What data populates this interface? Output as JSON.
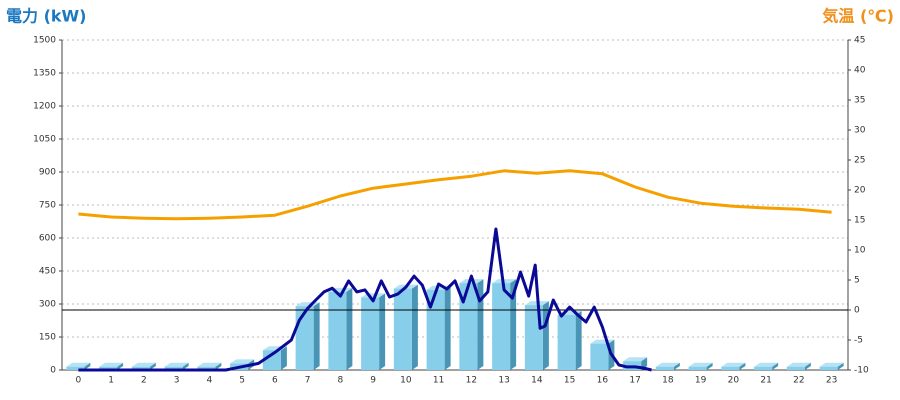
{
  "chart_data": {
    "type": "bar",
    "y_label": "電力 (kW)",
    "y2_label": "気温 (℃)",
    "categories": [
      "0",
      "1",
      "2",
      "3",
      "4",
      "5",
      "6",
      "7",
      "8",
      "9",
      "10",
      "11",
      "12",
      "13",
      "14",
      "15",
      "16",
      "17",
      "18",
      "19",
      "20",
      "21",
      "22",
      "23"
    ],
    "ylim": [
      0,
      1500
    ],
    "yticks": [
      0,
      150,
      300,
      450,
      600,
      750,
      900,
      1050,
      1200,
      1350,
      1500
    ],
    "y2lim": [
      -10,
      45
    ],
    "y2ticks": [
      -10,
      -5,
      0,
      5,
      10,
      15,
      20,
      25,
      30,
      35,
      40,
      45
    ],
    "grid": true,
    "y2_zero_line": true,
    "series": [
      {
        "type": "bar",
        "color": "#87ceeb",
        "values": [
          15,
          15,
          15,
          15,
          15,
          30,
          90,
          290,
          355,
          330,
          370,
          365,
          395,
          395,
          295,
          250,
          120,
          40,
          15,
          15,
          15,
          15,
          15,
          15
        ]
      },
      {
        "type": "line",
        "color": "#0a0a96",
        "x": [
          0,
          4.5,
          5,
          5.5,
          6,
          6.5,
          6.75,
          7,
          7.25,
          7.5,
          7.75,
          8,
          8.25,
          8.5,
          8.75,
          9,
          9.25,
          9.5,
          9.75,
          10,
          10.25,
          10.5,
          10.75,
          11,
          11.25,
          11.5,
          11.75,
          12,
          12.25,
          12.5,
          12.75,
          13,
          13.25,
          13.5,
          13.75,
          13.95,
          14.1,
          14.25,
          14.5,
          14.75,
          15,
          15.25,
          15.5,
          15.75,
          16,
          16.25,
          16.5,
          16.75,
          17,
          17.25,
          17.5
        ],
        "values": [
          0,
          0,
          15,
          30,
          80,
          136,
          227,
          280,
          318,
          355,
          372,
          336,
          405,
          355,
          364,
          314,
          405,
          332,
          345,
          377,
          427,
          386,
          286,
          391,
          368,
          405,
          309,
          427,
          314,
          355,
          641,
          364,
          327,
          445,
          336,
          477,
          190,
          200,
          318,
          245,
          286,
          250,
          218,
          286,
          195,
          77,
          23,
          14,
          14,
          9,
          0
        ]
      },
      {
        "type": "line",
        "axis": "y2",
        "color": "#f5a000",
        "values": [
          16,
          15.5,
          15.3,
          15.2,
          15.3,
          15.5,
          15.8,
          17.3,
          19,
          20.3,
          21,
          21.7,
          22.3,
          23.2,
          22.8,
          23.2,
          22.7,
          20.5,
          18.8,
          17.8,
          17.3,
          17,
          16.8,
          16.3
        ]
      }
    ]
  }
}
